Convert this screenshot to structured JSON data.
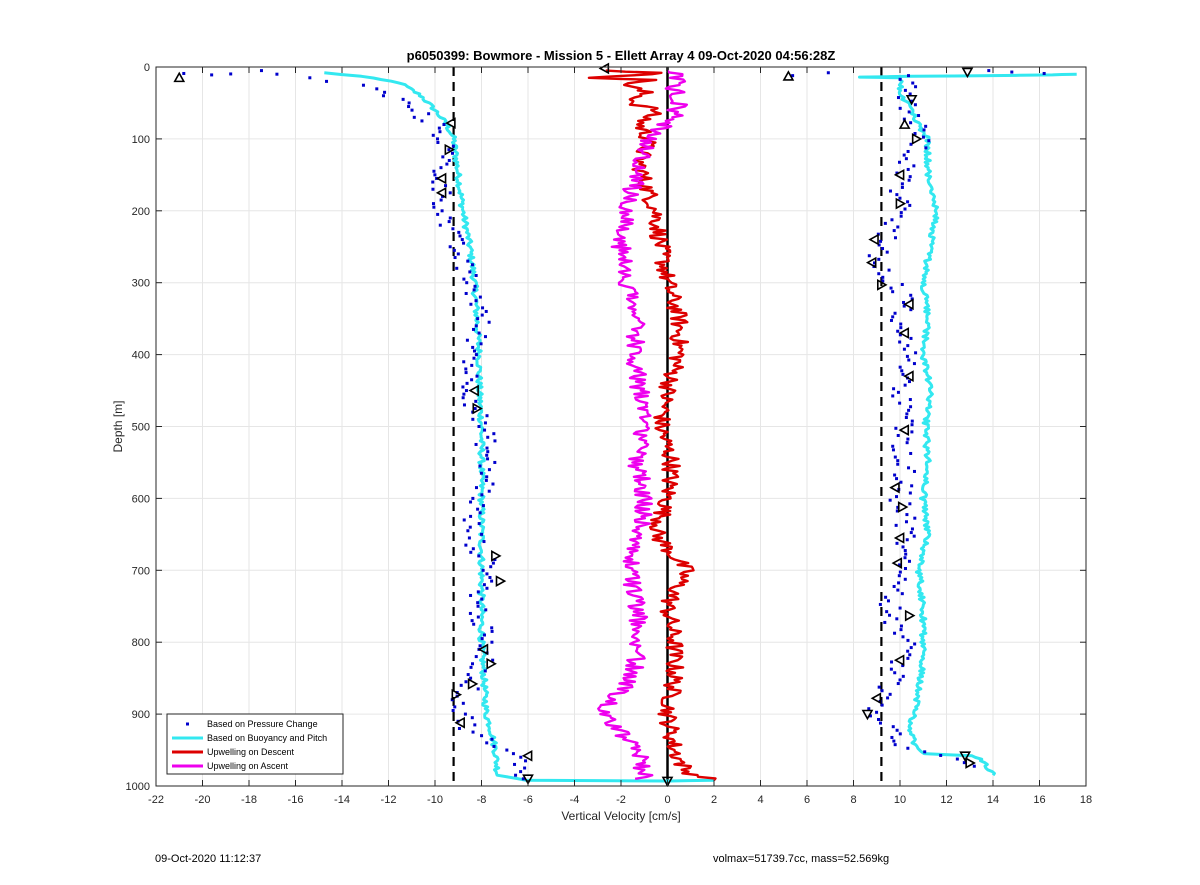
{
  "chart_data": {
    "type": "line",
    "title": "p6050399: Bowmore - Mission 5 - Ellett Array 4 09-Oct-2020 04:56:28Z",
    "xlabel": "Vertical Velocity [cm/s]",
    "ylabel": "Depth [m]",
    "xlim": [
      -22,
      18
    ],
    "ylim": [
      0,
      1000
    ],
    "y_reversed": true,
    "grid": true,
    "x_ticks": [
      -22,
      -20,
      -18,
      -16,
      -14,
      -12,
      -10,
      -8,
      -6,
      -4,
      -2,
      0,
      2,
      4,
      6,
      8,
      10,
      12,
      14,
      16,
      18
    ],
    "y_ticks": [
      0,
      100,
      200,
      300,
      400,
      500,
      600,
      700,
      800,
      900,
      1000
    ],
    "reference_lines": [
      {
        "x": -9.2,
        "style": "dashed",
        "color": "#000000"
      },
      {
        "x": 0,
        "style": "solid",
        "color": "#000000"
      },
      {
        "x": 9.2,
        "style": "dashed",
        "color": "#000000"
      }
    ],
    "legend": {
      "placement": "bottom-left",
      "entries": [
        {
          "label": "Based on Pressure Change",
          "color": "#0000cc",
          "marker": "dot"
        },
        {
          "label": "Based on Buoyancy and Pitch",
          "color": "#33e8f0",
          "marker": "line"
        },
        {
          "label": "Upwelling on Descent",
          "color": "#dd0000",
          "marker": "line"
        },
        {
          "label": "Upwelling on Ascent",
          "color": "#ee00ee",
          "marker": "line"
        }
      ]
    },
    "series": [
      {
        "name": "Based on Buoyancy and Pitch",
        "color": "#33e8f0",
        "segment": "descent",
        "points": [
          [
            -14.8,
            8
          ],
          [
            -13.2,
            13
          ],
          [
            -11.5,
            22
          ],
          [
            -10.6,
            40
          ],
          [
            -10.0,
            60
          ],
          [
            -9.5,
            80
          ],
          [
            -9.2,
            100
          ],
          [
            -9.0,
            150
          ],
          [
            -8.8,
            200
          ],
          [
            -8.5,
            250
          ],
          [
            -8.3,
            300
          ],
          [
            -8.2,
            350
          ],
          [
            -8.1,
            400
          ],
          [
            -8.1,
            450
          ],
          [
            -8.0,
            500
          ],
          [
            -8.0,
            550
          ],
          [
            -8.0,
            600
          ],
          [
            -8.0,
            650
          ],
          [
            -8.0,
            700
          ],
          [
            -8.0,
            750
          ],
          [
            -8.0,
            800
          ],
          [
            -7.9,
            850
          ],
          [
            -7.8,
            900
          ],
          [
            -7.6,
            920
          ],
          [
            -7.4,
            950
          ],
          [
            -7.3,
            985
          ],
          [
            -6.0,
            992
          ],
          [
            0.0,
            993
          ],
          [
            2.0,
            992
          ]
        ]
      },
      {
        "name": "Based on Buoyancy and Pitch",
        "color": "#33e8f0",
        "segment": "ascent",
        "points": [
          [
            14.0,
            985
          ],
          [
            13.8,
            975
          ],
          [
            13.5,
            965
          ],
          [
            13.2,
            958
          ],
          [
            11.0,
            955
          ],
          [
            10.7,
            945
          ],
          [
            10.5,
            930
          ],
          [
            10.4,
            910
          ],
          [
            10.6,
            900
          ],
          [
            10.9,
            850
          ],
          [
            11.0,
            800
          ],
          [
            11.0,
            750
          ],
          [
            10.8,
            700
          ],
          [
            11.2,
            650
          ],
          [
            11.0,
            600
          ],
          [
            11.2,
            550
          ],
          [
            11.1,
            500
          ],
          [
            11.3,
            450
          ],
          [
            11.0,
            400
          ],
          [
            11.2,
            350
          ],
          [
            11.0,
            300
          ],
          [
            11.3,
            250
          ],
          [
            11.6,
            200
          ],
          [
            11.2,
            150
          ],
          [
            11.2,
            100
          ],
          [
            10.8,
            80
          ],
          [
            10.5,
            60
          ],
          [
            10.2,
            45
          ],
          [
            10.0,
            30
          ],
          [
            10.2,
            20
          ],
          [
            10.0,
            15
          ],
          [
            8.2,
            14
          ],
          [
            10.5,
            13
          ],
          [
            14.0,
            12
          ],
          [
            16.5,
            11
          ],
          [
            17.6,
            10
          ]
        ]
      },
      {
        "name": "Upwelling on Descent",
        "color": "#dd0000",
        "points": [
          [
            -2.5,
            5
          ],
          [
            -0.5,
            8
          ],
          [
            -1.5,
            12
          ],
          [
            -3.0,
            15
          ],
          [
            -0.8,
            18
          ],
          [
            -1.8,
            25
          ],
          [
            -1.0,
            35
          ],
          [
            -1.5,
            50
          ],
          [
            -0.5,
            60
          ],
          [
            -1.2,
            80
          ],
          [
            -0.8,
            100
          ],
          [
            -1.2,
            130
          ],
          [
            -1.0,
            160
          ],
          [
            -0.5,
            200
          ],
          [
            -0.3,
            250
          ],
          [
            0.0,
            300
          ],
          [
            0.5,
            350
          ],
          [
            0.5,
            400
          ],
          [
            0.0,
            450
          ],
          [
            -0.3,
            500
          ],
          [
            0.2,
            550
          ],
          [
            0.0,
            600
          ],
          [
            -0.5,
            650
          ],
          [
            0.8,
            700
          ],
          [
            0.0,
            750
          ],
          [
            0.3,
            800
          ],
          [
            0.3,
            850
          ],
          [
            0.0,
            900
          ],
          [
            0.3,
            950
          ],
          [
            0.8,
            980
          ],
          [
            2.0,
            992
          ]
        ]
      },
      {
        "name": "Upwelling on Ascent",
        "color": "#ee00ee",
        "points": [
          [
            -1.0,
            990
          ],
          [
            -1.2,
            960
          ],
          [
            -1.5,
            940
          ],
          [
            -2.2,
            920
          ],
          [
            -2.8,
            900
          ],
          [
            -2.3,
            880
          ],
          [
            -1.5,
            850
          ],
          [
            -1.2,
            800
          ],
          [
            -1.3,
            750
          ],
          [
            -1.7,
            700
          ],
          [
            -1.2,
            650
          ],
          [
            -1.0,
            600
          ],
          [
            -1.3,
            550
          ],
          [
            -1.0,
            500
          ],
          [
            -1.2,
            450
          ],
          [
            -1.4,
            400
          ],
          [
            -1.4,
            350
          ],
          [
            -1.7,
            300
          ],
          [
            -2.0,
            250
          ],
          [
            -1.8,
            200
          ],
          [
            -1.3,
            150
          ],
          [
            -0.8,
            100
          ],
          [
            0.3,
            70
          ],
          [
            0.5,
            50
          ],
          [
            0.3,
            30
          ],
          [
            0.5,
            15
          ],
          [
            0.0,
            5
          ]
        ]
      },
      {
        "name": "Based on Pressure Change",
        "color": "#0000cc",
        "marker": "dot",
        "segment": "descent",
        "points": [
          [
            -21.5,
            8
          ],
          [
            -20.5,
            10
          ],
          [
            -19.0,
            12
          ],
          [
            -17.8,
            5
          ],
          [
            -16.5,
            10
          ],
          [
            -15.5,
            15
          ],
          [
            -14.5,
            20
          ],
          [
            -12.8,
            28
          ],
          [
            -12.0,
            40
          ],
          [
            -11.0,
            55
          ],
          [
            -10.5,
            70
          ],
          [
            -9.8,
            85
          ],
          [
            -9.5,
            110
          ],
          [
            -9.8,
            150
          ],
          [
            -9.7,
            180
          ],
          [
            -9.5,
            220
          ],
          [
            -9.0,
            260
          ],
          [
            -8.5,
            300
          ],
          [
            -8.0,
            340
          ],
          [
            -8.2,
            380
          ],
          [
            -8.5,
            430
          ],
          [
            -8.3,
            470
          ],
          [
            -7.8,
            520
          ],
          [
            -7.8,
            580
          ],
          [
            -8.5,
            630
          ],
          [
            -8.2,
            670
          ],
          [
            -7.5,
            700
          ],
          [
            -8.2,
            740
          ],
          [
            -8.0,
            780
          ],
          [
            -7.8,
            820
          ],
          [
            -8.5,
            860
          ],
          [
            -9.0,
            890
          ],
          [
            -8.5,
            920
          ],
          [
            -7.5,
            945
          ],
          [
            -6.5,
            960
          ],
          [
            -6.2,
            975
          ],
          [
            -6.2,
            990
          ]
        ]
      },
      {
        "name": "Based on Pressure Change",
        "color": "#0000cc",
        "marker": "dot",
        "segment": "ascent",
        "points": [
          [
            13.2,
            975
          ],
          [
            12.5,
            960
          ],
          [
            10.2,
            945
          ],
          [
            9.8,
            920
          ],
          [
            9.0,
            900
          ],
          [
            9.3,
            870
          ],
          [
            10.0,
            840
          ],
          [
            10.2,
            800
          ],
          [
            9.5,
            760
          ],
          [
            9.8,
            720
          ],
          [
            10.0,
            680
          ],
          [
            10.3,
            640
          ],
          [
            10.0,
            600
          ],
          [
            10.2,
            560
          ],
          [
            10.0,
            520
          ],
          [
            10.2,
            480
          ],
          [
            10.0,
            440
          ],
          [
            10.3,
            400
          ],
          [
            10.0,
            360
          ],
          [
            10.3,
            320
          ],
          [
            9.5,
            290
          ],
          [
            9.0,
            260
          ],
          [
            9.5,
            230
          ],
          [
            10.0,
            200
          ],
          [
            10.0,
            170
          ],
          [
            10.3,
            140
          ],
          [
            10.8,
            110
          ],
          [
            10.8,
            90
          ],
          [
            10.5,
            70
          ],
          [
            10.2,
            50
          ],
          [
            10.5,
            30
          ],
          [
            10.0,
            12
          ],
          [
            5.2,
            12
          ],
          [
            6.5,
            8
          ],
          [
            13.5,
            5
          ],
          [
            15.0,
            7
          ],
          [
            16.2,
            9
          ]
        ]
      }
    ],
    "triangle_markers": [
      {
        "x": -21.0,
        "y": 15,
        "dir": "up"
      },
      {
        "x": -2.7,
        "y": 2,
        "dir": "left"
      },
      {
        "x": 5.2,
        "y": 13,
        "dir": "up"
      },
      {
        "x": 12.9,
        "y": 7,
        "dir": "down"
      },
      {
        "x": -9.3,
        "y": 78,
        "dir": "left"
      },
      {
        "x": -9.4,
        "y": 115,
        "dir": "right"
      },
      {
        "x": -9.7,
        "y": 155,
        "dir": "left"
      },
      {
        "x": -9.7,
        "y": 175,
        "dir": "left"
      },
      {
        "x": -8.3,
        "y": 450,
        "dir": "left"
      },
      {
        "x": -8.2,
        "y": 475,
        "dir": "right"
      },
      {
        "x": -7.4,
        "y": 680,
        "dir": "right"
      },
      {
        "x": -7.2,
        "y": 715,
        "dir": "right"
      },
      {
        "x": -7.9,
        "y": 810,
        "dir": "left"
      },
      {
        "x": -7.6,
        "y": 830,
        "dir": "right"
      },
      {
        "x": -8.4,
        "y": 858,
        "dir": "right"
      },
      {
        "x": -9.1,
        "y": 873,
        "dir": "right"
      },
      {
        "x": -8.9,
        "y": 912,
        "dir": "left"
      },
      {
        "x": -6.0,
        "y": 958,
        "dir": "left"
      },
      {
        "x": -6.0,
        "y": 990,
        "dir": "down"
      },
      {
        "x": 0.0,
        "y": 993,
        "dir": "down"
      },
      {
        "x": 10.5,
        "y": 45,
        "dir": "down"
      },
      {
        "x": 10.2,
        "y": 80,
        "dir": "up"
      },
      {
        "x": 10.7,
        "y": 100,
        "dir": "right"
      },
      {
        "x": 10.0,
        "y": 150,
        "dir": "left"
      },
      {
        "x": 10.0,
        "y": 190,
        "dir": "right"
      },
      {
        "x": 8.9,
        "y": 240,
        "dir": "left"
      },
      {
        "x": 8.8,
        "y": 272,
        "dir": "left"
      },
      {
        "x": 9.2,
        "y": 303,
        "dir": "right"
      },
      {
        "x": 10.4,
        "y": 330,
        "dir": "left"
      },
      {
        "x": 10.2,
        "y": 370,
        "dir": "left"
      },
      {
        "x": 10.4,
        "y": 430,
        "dir": "left"
      },
      {
        "x": 10.2,
        "y": 505,
        "dir": "left"
      },
      {
        "x": 9.8,
        "y": 585,
        "dir": "left"
      },
      {
        "x": 10.1,
        "y": 612,
        "dir": "right"
      },
      {
        "x": 10.0,
        "y": 655,
        "dir": "left"
      },
      {
        "x": 9.9,
        "y": 690,
        "dir": "left"
      },
      {
        "x": 10.4,
        "y": 763,
        "dir": "right"
      },
      {
        "x": 10.0,
        "y": 825,
        "dir": "left"
      },
      {
        "x": 9.0,
        "y": 878,
        "dir": "left"
      },
      {
        "x": 8.6,
        "y": 900,
        "dir": "down"
      },
      {
        "x": 12.8,
        "y": 958,
        "dir": "down"
      },
      {
        "x": 13.0,
        "y": 968,
        "dir": "right"
      }
    ]
  },
  "footer": {
    "timestamp": "09-Oct-2020 11:12:37",
    "info": "volmax=51739.7cc, mass=52.569kg"
  }
}
